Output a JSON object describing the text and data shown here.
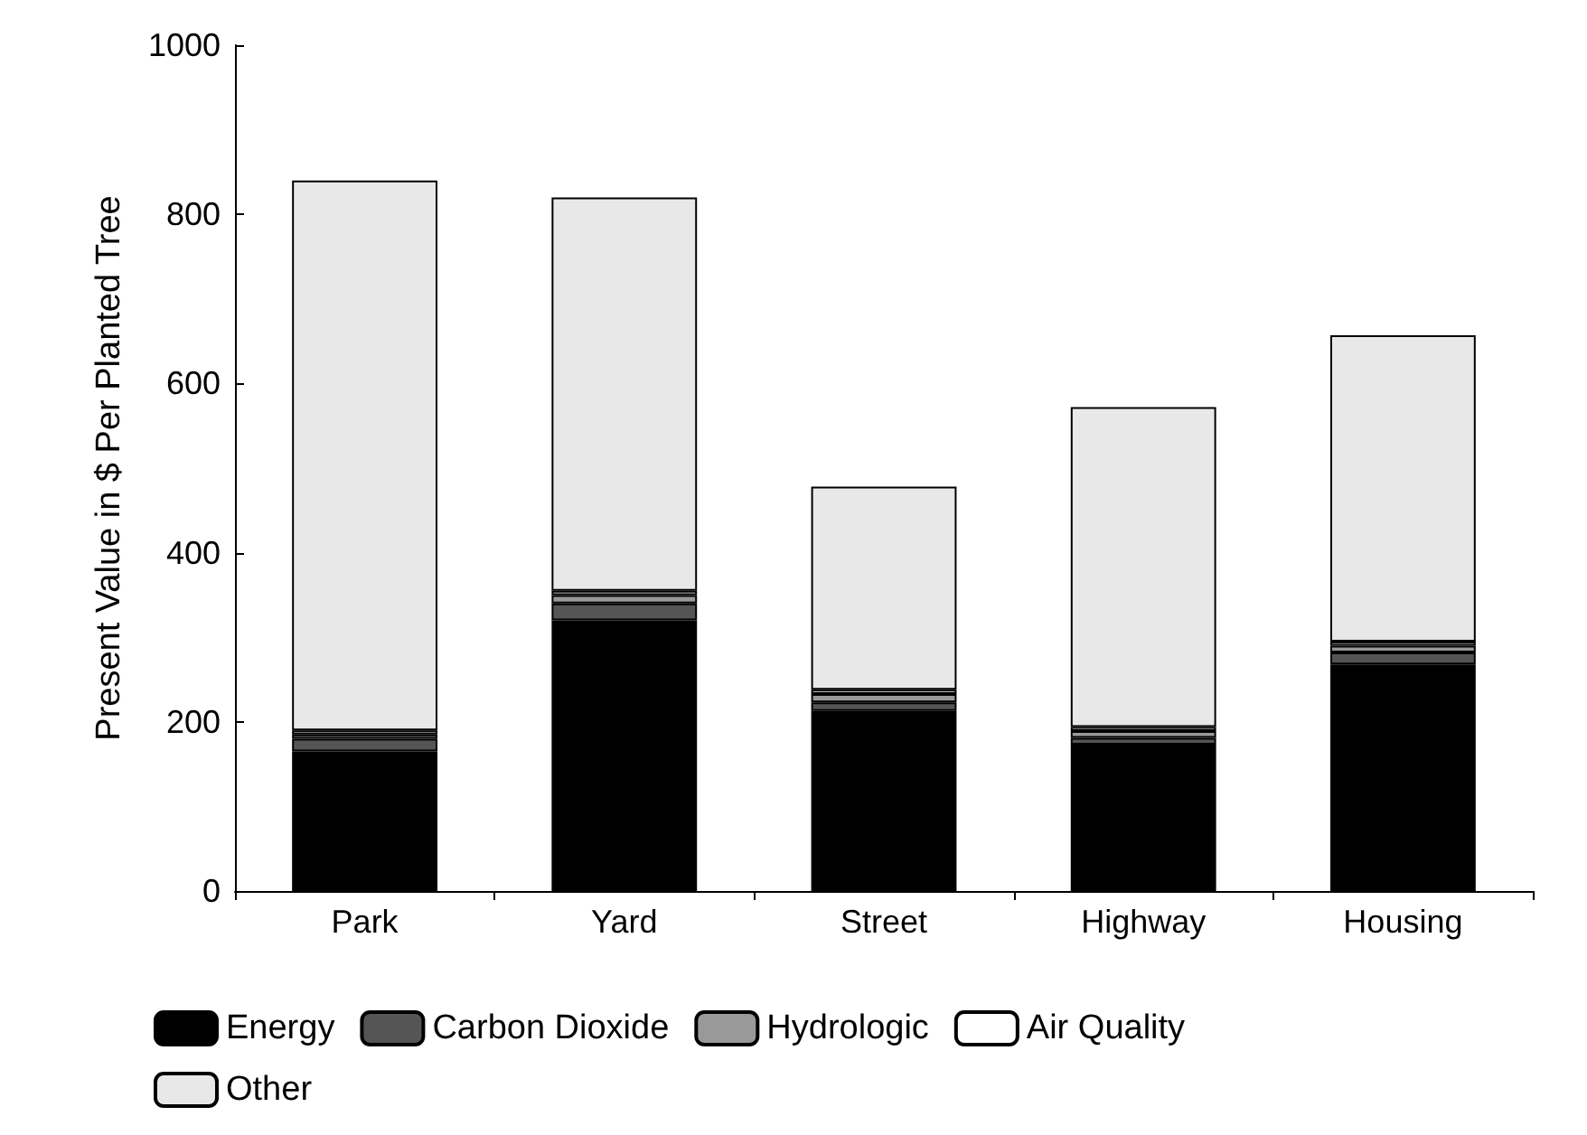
{
  "chart_data": {
    "type": "bar",
    "stacked": true,
    "ylabel": "Present Value in $ Per Planted Tree",
    "categories": [
      "Park",
      "Yard",
      "Street",
      "Highway",
      "Housing"
    ],
    "series": [
      {
        "name": "Energy",
        "color": "#000000",
        "values": [
          165,
          320,
          213,
          173,
          268
        ]
      },
      {
        "name": "Carbon Dioxide",
        "color": "#555555",
        "values": [
          15,
          20,
          10,
          8,
          14
        ]
      },
      {
        "name": "Hydrologic",
        "color": "#999999",
        "values": [
          5,
          10,
          10,
          8,
          8
        ]
      },
      {
        "name": "Air Quality",
        "color": "#ffffff",
        "values": [
          5,
          5,
          5,
          5,
          5
        ]
      },
      {
        "name": "Other",
        "color": "#e8e8e8",
        "values": [
          650,
          465,
          240,
          378,
          362
        ]
      }
    ],
    "ylim": [
      0,
      1000
    ],
    "yticks": [
      0,
      200,
      400,
      600,
      800,
      1000
    ],
    "grid": false,
    "legend": "bottom"
  }
}
